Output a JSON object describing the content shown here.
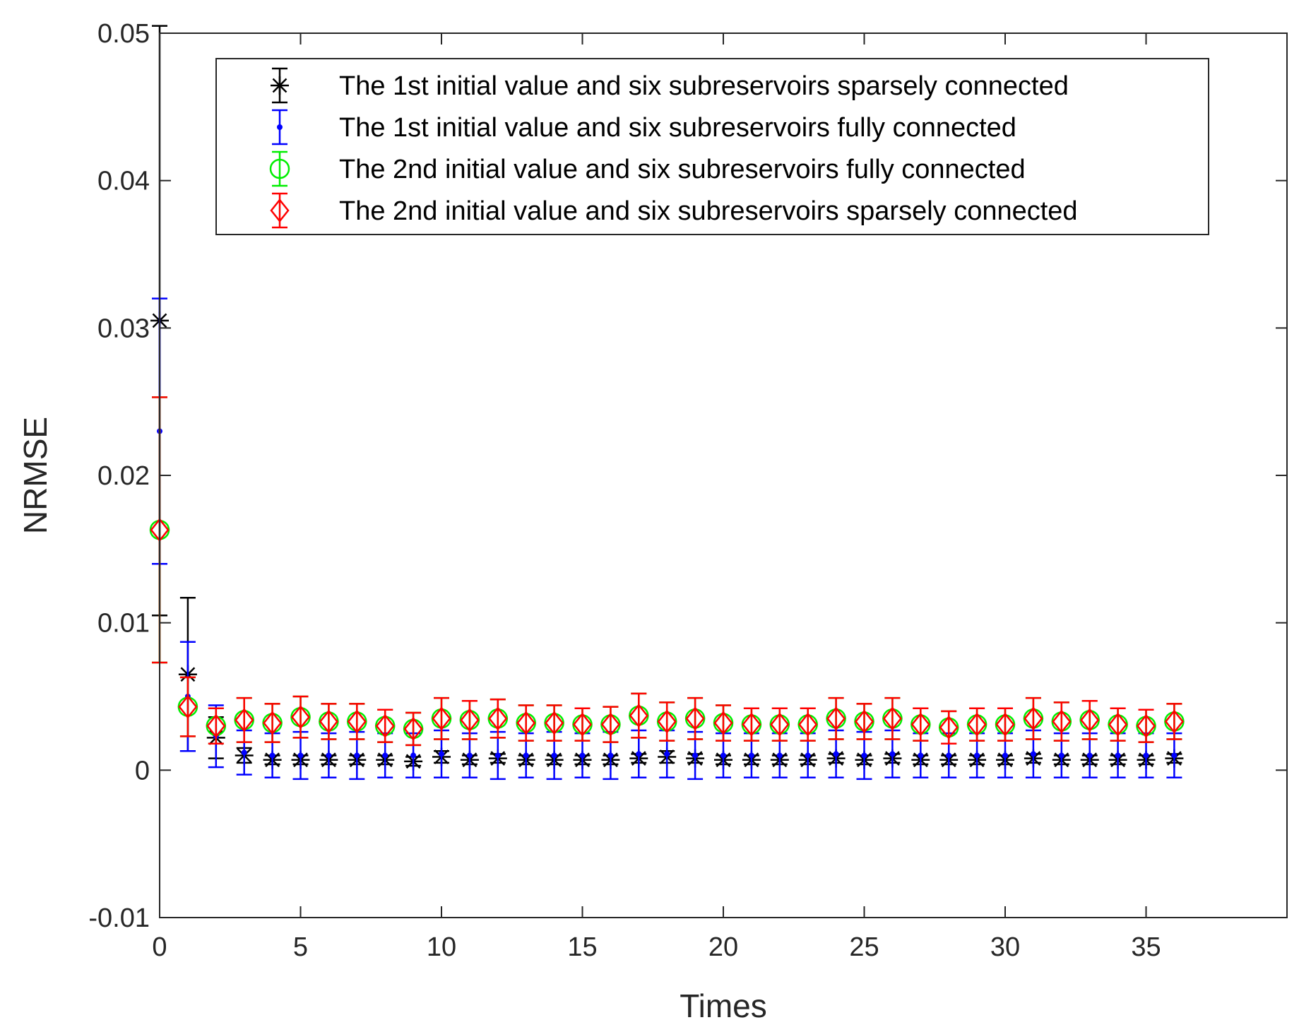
{
  "chart_data": {
    "type": "errorbar",
    "xlabel": "Times",
    "ylabel": "NRMSE",
    "xlim": [
      0,
      40
    ],
    "ylim": [
      -0.01,
      0.05
    ],
    "xticks": [
      0,
      5,
      10,
      15,
      20,
      25,
      30,
      35
    ],
    "xtick_labels": [
      "0",
      "5",
      "10",
      "15",
      "20",
      "25",
      "30",
      "35"
    ],
    "yticks": [
      -0.01,
      0,
      0.01,
      0.02,
      0.03,
      0.04,
      0.05
    ],
    "ytick_labels": [
      "-0.01",
      "0",
      "0.01",
      "0.02",
      "0.03",
      "0.04",
      "0.05"
    ],
    "grid": false,
    "legend_position": "top-right",
    "x": [
      0,
      1,
      2,
      3,
      4,
      5,
      6,
      7,
      8,
      9,
      10,
      11,
      12,
      13,
      14,
      15,
      16,
      17,
      18,
      19,
      20,
      21,
      22,
      23,
      24,
      25,
      26,
      27,
      28,
      29,
      30,
      31,
      32,
      33,
      34,
      35,
      36
    ],
    "series": [
      {
        "name": "The 1st initial value and six subreservoirs sparsely connected",
        "color": "#000000",
        "marker": "asterisk",
        "values": [
          0.0305,
          0.0065,
          0.0022,
          0.001,
          0.0007,
          0.0007,
          0.0007,
          0.0007,
          0.0007,
          0.0006,
          0.0009,
          0.0007,
          0.0008,
          0.0007,
          0.0007,
          0.0007,
          0.0007,
          0.0008,
          0.0009,
          0.0008,
          0.0007,
          0.0007,
          0.0007,
          0.0007,
          0.0008,
          0.0007,
          0.0008,
          0.0007,
          0.0007,
          0.0007,
          0.0007,
          0.0008,
          0.0007,
          0.0007,
          0.0007,
          0.0007,
          0.0008
        ],
        "errors": [
          0.02,
          0.0052,
          0.0014,
          0.0005,
          0.0003,
          0.0003,
          0.0003,
          0.0003,
          0.0003,
          0.0003,
          0.0004,
          0.0003,
          0.0003,
          0.0003,
          0.0003,
          0.0003,
          0.0003,
          0.0003,
          0.0004,
          0.0003,
          0.0003,
          0.0003,
          0.0003,
          0.0003,
          0.0003,
          0.0003,
          0.0003,
          0.0003,
          0.0003,
          0.0003,
          0.0003,
          0.0003,
          0.0003,
          0.0003,
          0.0003,
          0.0003,
          0.0003
        ]
      },
      {
        "name": "The 1st initial value and six subreservoirs fully connected",
        "color": "#0000ff",
        "marker": "dot",
        "values": [
          0.023,
          0.005,
          0.0023,
          0.0012,
          0.001,
          0.001,
          0.001,
          0.001,
          0.001,
          0.001,
          0.0011,
          0.001,
          0.001,
          0.001,
          0.001,
          0.001,
          0.001,
          0.0011,
          0.0011,
          0.001,
          0.001,
          0.001,
          0.001,
          0.001,
          0.0011,
          0.001,
          0.0011,
          0.001,
          0.001,
          0.001,
          0.001,
          0.0011,
          0.001,
          0.001,
          0.001,
          0.001,
          0.001
        ],
        "errors": [
          0.009,
          0.0037,
          0.0021,
          0.0015,
          0.0015,
          0.0016,
          0.0015,
          0.0016,
          0.0015,
          0.0015,
          0.0016,
          0.0015,
          0.0016,
          0.0015,
          0.0016,
          0.0015,
          0.0016,
          0.0016,
          0.0016,
          0.0016,
          0.0015,
          0.0015,
          0.0015,
          0.0015,
          0.0016,
          0.0016,
          0.0016,
          0.0015,
          0.0015,
          0.0015,
          0.0015,
          0.0016,
          0.0015,
          0.0015,
          0.0015,
          0.0015,
          0.0015
        ]
      },
      {
        "name": "The 2nd initial value and six subreservoirs fully connected",
        "color": "#00ee00",
        "marker": "circle",
        "values": [
          0.0163,
          0.0043,
          0.003,
          0.0034,
          0.0032,
          0.0036,
          0.0033,
          0.0033,
          0.003,
          0.0028,
          0.0035,
          0.0034,
          0.0035,
          0.0032,
          0.0032,
          0.0031,
          0.0031,
          0.0037,
          0.0033,
          0.0035,
          0.0032,
          0.0031,
          0.0031,
          0.0031,
          0.0035,
          0.0033,
          0.0035,
          0.0031,
          0.0029,
          0.0031,
          0.0031,
          0.0035,
          0.0033,
          0.0034,
          0.0031,
          0.003,
          0.0033
        ],
        "errors": [
          0.009,
          0.002,
          0.0012,
          0.0015,
          0.0013,
          0.0014,
          0.0012,
          0.0012,
          0.0011,
          0.0011,
          0.0014,
          0.0013,
          0.0013,
          0.0012,
          0.0012,
          0.0011,
          0.0012,
          0.0015,
          0.0013,
          0.0014,
          0.0012,
          0.0011,
          0.0011,
          0.0011,
          0.0014,
          0.0012,
          0.0014,
          0.0011,
          0.0011,
          0.0011,
          0.0011,
          0.0014,
          0.0013,
          0.0013,
          0.0011,
          0.0011,
          0.0012
        ]
      },
      {
        "name": "The 2nd initial value and six subreservoirs sparsely connected",
        "color": "#ff0000",
        "marker": "diamond",
        "values": [
          0.0163,
          0.0043,
          0.003,
          0.0034,
          0.0032,
          0.0036,
          0.0033,
          0.0033,
          0.003,
          0.0028,
          0.0035,
          0.0034,
          0.0035,
          0.0032,
          0.0032,
          0.0031,
          0.0031,
          0.0037,
          0.0033,
          0.0035,
          0.0032,
          0.0031,
          0.0031,
          0.0031,
          0.0035,
          0.0033,
          0.0035,
          0.0031,
          0.0029,
          0.0031,
          0.0031,
          0.0035,
          0.0033,
          0.0034,
          0.0031,
          0.003,
          0.0033
        ],
        "errors": [
          0.009,
          0.002,
          0.0012,
          0.0015,
          0.0013,
          0.0014,
          0.0012,
          0.0012,
          0.0011,
          0.0011,
          0.0014,
          0.0013,
          0.0013,
          0.0012,
          0.0012,
          0.0011,
          0.0012,
          0.0015,
          0.0013,
          0.0014,
          0.0012,
          0.0011,
          0.0011,
          0.0011,
          0.0014,
          0.0012,
          0.0014,
          0.0011,
          0.0011,
          0.0011,
          0.0011,
          0.0014,
          0.0013,
          0.0013,
          0.0011,
          0.0011,
          0.0012
        ]
      }
    ]
  }
}
